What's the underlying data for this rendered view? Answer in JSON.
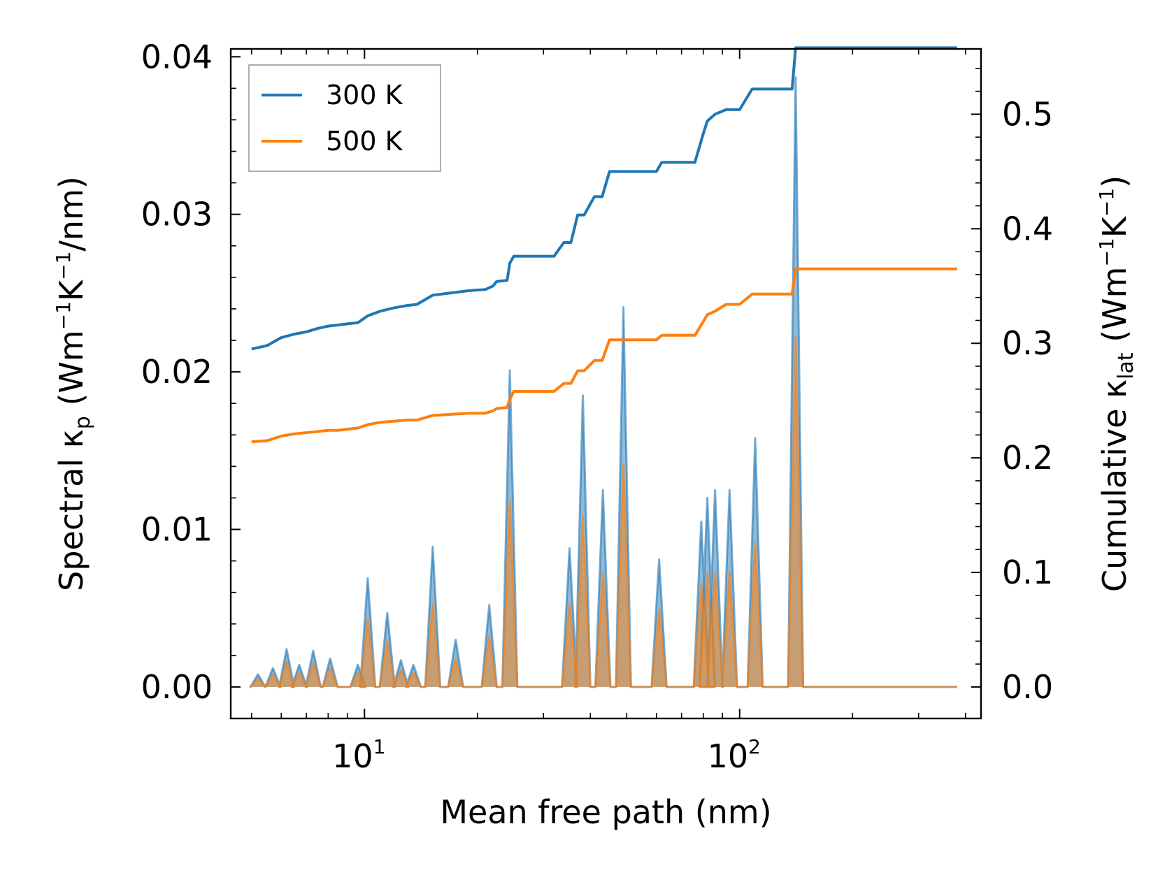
{
  "chart_data": {
    "type": "line",
    "xscale": "log",
    "xlabel": "Mean free path (nm)",
    "xlim": [
      4.4,
      440
    ],
    "x_ticks": [
      {
        "value": 10,
        "base": "10",
        "exp": "1"
      },
      {
        "value": 100,
        "base": "10",
        "exp": "2"
      }
    ],
    "left_axis": {
      "label_parts": {
        "main": "Spectral κ",
        "sub": "p",
        "u1": " (Wm",
        "s1": "−1",
        "u2": "K",
        "s2": "−1",
        "u3": "/nm)"
      },
      "ylim": [
        -0.002,
        0.0405
      ],
      "ticks": [
        0.0,
        0.01,
        0.02,
        0.03,
        0.04
      ],
      "tick_labels": [
        "0.00",
        "0.01",
        "0.02",
        "0.03",
        "0.04"
      ]
    },
    "right_axis": {
      "label_parts": {
        "main": "Cumulative κ",
        "sub": "lat",
        "u1": " (Wm",
        "s1": "−1",
        "u2": "K",
        "s2": "−1",
        "u3": ")"
      },
      "ylim": [
        -0.0275,
        0.557
      ],
      "ticks": [
        0.0,
        0.1,
        0.2,
        0.3,
        0.4,
        0.5
      ],
      "tick_labels": [
        "0.0",
        "0.1",
        "0.2",
        "0.3",
        "0.4",
        "0.5"
      ]
    },
    "legend": {
      "position": "upper-left",
      "entries": [
        "300 K",
        "500 K"
      ]
    },
    "colors": {
      "300 K": "#1f77b4",
      "500 K": "#ff7f0e",
      "fill": "#1f77b4",
      "fill_orange": "#ff7f0e"
    },
    "spectral_peaks": [
      {
        "mfp": 5.2,
        "k300": 0.0008,
        "k500": 0.0005
      },
      {
        "mfp": 5.7,
        "k300": 0.0012,
        "k500": 0.0008
      },
      {
        "mfp": 6.2,
        "k300": 0.0024,
        "k500": 0.0016
      },
      {
        "mfp": 6.7,
        "k300": 0.0014,
        "k500": 0.0009
      },
      {
        "mfp": 7.3,
        "k300": 0.0023,
        "k500": 0.0015
      },
      {
        "mfp": 8.1,
        "k300": 0.0018,
        "k500": 0.0012
      },
      {
        "mfp": 9.6,
        "k300": 0.0014,
        "k500": 0.0009
      },
      {
        "mfp": 10.2,
        "k300": 0.0069,
        "k500": 0.0043
      },
      {
        "mfp": 11.5,
        "k300": 0.0047,
        "k500": 0.0029
      },
      {
        "mfp": 12.5,
        "k300": 0.0017,
        "k500": 0.0011
      },
      {
        "mfp": 13.5,
        "k300": 0.0014,
        "k500": 0.0009
      },
      {
        "mfp": 15.2,
        "k300": 0.0089,
        "k500": 0.0053
      },
      {
        "mfp": 17.5,
        "k300": 0.003,
        "k500": 0.0018
      },
      {
        "mfp": 21.5,
        "k300": 0.0052,
        "k500": 0.0032
      },
      {
        "mfp": 24.4,
        "k300": 0.0201,
        "k500": 0.0118
      },
      {
        "mfp": 35.2,
        "k300": 0.0088,
        "k500": 0.0053
      },
      {
        "mfp": 38.2,
        "k300": 0.0185,
        "k500": 0.0108
      },
      {
        "mfp": 43.2,
        "k300": 0.0125,
        "k500": 0.0073
      },
      {
        "mfp": 49.0,
        "k300": 0.0241,
        "k500": 0.0141
      },
      {
        "mfp": 61.0,
        "k300": 0.0081,
        "k500": 0.0049
      },
      {
        "mfp": 79.0,
        "k300": 0.0105,
        "k500": 0.0065
      },
      {
        "mfp": 82.0,
        "k300": 0.012,
        "k500": 0.0072
      },
      {
        "mfp": 86.0,
        "k300": 0.0125,
        "k500": 0.0073
      },
      {
        "mfp": 94.0,
        "k300": 0.0125,
        "k500": 0.0073
      },
      {
        "mfp": 110.0,
        "k300": 0.0158,
        "k500": 0.0092
      },
      {
        "mfp": 141.0,
        "k300": 0.0387,
        "k500": 0.0222
      }
    ],
    "series": [
      {
        "name": "300 K",
        "axis": "right",
        "x": [
          5.0,
          5.5,
          6.0,
          6.5,
          7.0,
          7.5,
          8.0,
          8.5,
          9.0,
          9.6,
          10.2,
          11.0,
          12.0,
          13.0,
          13.8,
          15.2,
          17.0,
          19.0,
          21.0,
          22.0,
          22.5,
          24.0,
          24.4,
          25.0,
          28.0,
          32.0,
          34.0,
          35.5,
          37.0,
          38.5,
          41.0,
          43.0,
          45.0,
          48.0,
          49.5,
          55.0,
          60.0,
          62.0,
          70.0,
          76.0,
          80.0,
          82.0,
          86.0,
          92.0,
          96.0,
          100.0,
          108.0,
          112.0,
          138.0,
          141.0,
          150.0,
          200.0,
          300.0,
          380.0
        ],
        "y": [
          0.295,
          0.298,
          0.305,
          0.308,
          0.31,
          0.313,
          0.315,
          0.316,
          0.317,
          0.318,
          0.324,
          0.328,
          0.331,
          0.333,
          0.334,
          0.342,
          0.344,
          0.346,
          0.347,
          0.35,
          0.354,
          0.355,
          0.37,
          0.376,
          0.376,
          0.376,
          0.388,
          0.388,
          0.412,
          0.412,
          0.428,
          0.428,
          0.45,
          0.45,
          0.45,
          0.45,
          0.45,
          0.458,
          0.458,
          0.458,
          0.483,
          0.494,
          0.5,
          0.504,
          0.504,
          0.504,
          0.522,
          0.522,
          0.522,
          0.558,
          0.558,
          0.558,
          0.558,
          0.558
        ]
      },
      {
        "name": "500 K",
        "axis": "right",
        "x": [
          5.0,
          5.5,
          6.0,
          6.5,
          7.0,
          7.5,
          8.0,
          8.5,
          9.0,
          9.6,
          10.2,
          11.0,
          12.0,
          13.0,
          13.8,
          15.2,
          17.0,
          19.0,
          21.0,
          22.0,
          22.5,
          24.0,
          24.4,
          25.0,
          28.0,
          32.0,
          34.0,
          35.5,
          37.0,
          38.5,
          41.0,
          43.0,
          45.0,
          48.0,
          49.5,
          55.0,
          60.0,
          62.0,
          70.0,
          76.0,
          80.0,
          82.0,
          86.0,
          92.0,
          96.0,
          100.0,
          108.0,
          112.0,
          138.0,
          141.0,
          150.0,
          200.0,
          300.0,
          380.0
        ],
        "y": [
          0.214,
          0.215,
          0.219,
          0.221,
          0.222,
          0.223,
          0.224,
          0.224,
          0.225,
          0.226,
          0.229,
          0.231,
          0.232,
          0.233,
          0.233,
          0.237,
          0.238,
          0.239,
          0.239,
          0.241,
          0.243,
          0.244,
          0.251,
          0.258,
          0.258,
          0.258,
          0.265,
          0.265,
          0.276,
          0.276,
          0.285,
          0.285,
          0.303,
          0.303,
          0.303,
          0.303,
          0.303,
          0.307,
          0.307,
          0.307,
          0.319,
          0.325,
          0.328,
          0.334,
          0.334,
          0.334,
          0.343,
          0.343,
          0.343,
          0.365,
          0.365,
          0.365,
          0.365,
          0.365
        ]
      }
    ]
  }
}
